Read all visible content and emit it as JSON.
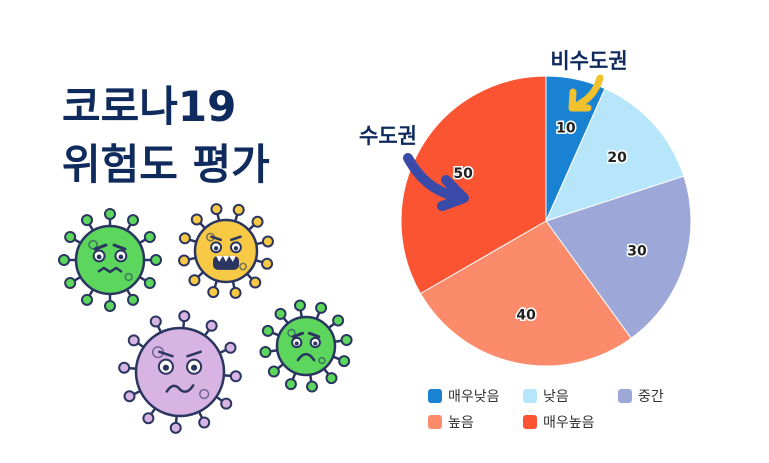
{
  "title": {
    "line1": "코로나19",
    "line2": "위험도 평가"
  },
  "annotations": {
    "metro": "수도권",
    "non_metro": "비수도권"
  },
  "colors": {
    "title": "#0f2a5c",
    "arrow_metro": "#3a4aa8",
    "arrow_non_metro": "#f2c12e"
  },
  "chart_data": {
    "type": "pie",
    "slices": [
      {
        "label": "매우낮음",
        "value": 10,
        "color": "#1a82d2"
      },
      {
        "label": "낮음",
        "value": 20,
        "color": "#b7e6fb"
      },
      {
        "label": "중간",
        "value": 30,
        "color": "#9da8d8"
      },
      {
        "label": "높음",
        "value": 40,
        "color": "#fc8b6c"
      },
      {
        "label": "매우높음",
        "value": 50,
        "color": "#fa5433"
      }
    ],
    "legend_position": "bottom"
  },
  "viruses": [
    {
      "name": "green-angry-virus-icon",
      "color": "#5cd65c"
    },
    {
      "name": "yellow-scared-virus-icon",
      "color": "#f7c945"
    },
    {
      "name": "purple-worried-virus-icon",
      "color": "#d8b4e2"
    },
    {
      "name": "green-frown-virus-icon",
      "color": "#5cd65c"
    }
  ]
}
